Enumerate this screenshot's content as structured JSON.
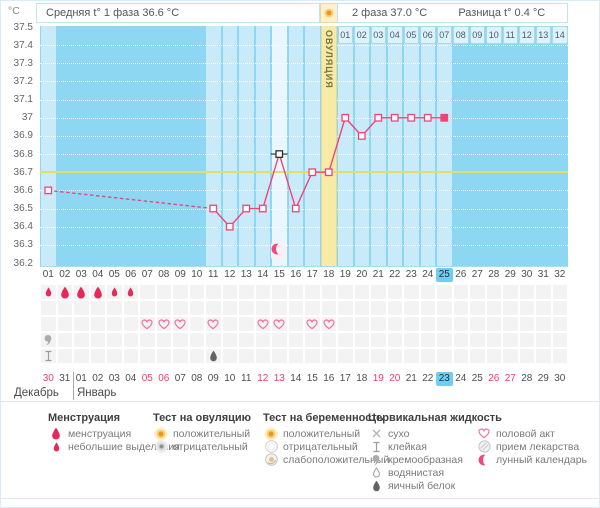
{
  "header": {
    "unit": "°C",
    "phase1_avg": "Средняя t° 1 фаза 36.6 °C",
    "phase2_avg": "2 фаза 37.0 °C",
    "difference": "Разница t° 0.4 °C"
  },
  "chart_data": {
    "type": "line",
    "ylabel": "°C",
    "ylim": [
      36.2,
      37.5
    ],
    "yticks": [
      "37.5",
      "37.4",
      "37.3",
      "37.2",
      "37.1",
      "37",
      "36.9",
      "36.8",
      "36.7",
      "36.6",
      "36.5",
      "36.4",
      "36.3",
      "36.2"
    ],
    "x_days": 32,
    "coverline_temp": 36.7,
    "ovulation": {
      "day": 18,
      "label": "ОВУЛЯЦИЯ"
    },
    "series": [
      {
        "name": "basal-temperature",
        "points": [
          {
            "day": 1,
            "temp": 36.6
          },
          {
            "day": 11,
            "temp": 36.5
          },
          {
            "day": 12,
            "temp": 36.4
          },
          {
            "day": 13,
            "temp": 36.5
          },
          {
            "day": 14,
            "temp": 36.5
          },
          {
            "day": 15,
            "temp": 36.8,
            "excluded": true
          },
          {
            "day": 16,
            "temp": 36.5
          },
          {
            "day": 17,
            "temp": 36.7
          },
          {
            "day": 18,
            "temp": 36.7
          },
          {
            "day": 19,
            "temp": 37.0
          },
          {
            "day": 20,
            "temp": 36.9
          },
          {
            "day": 21,
            "temp": 37.0
          },
          {
            "day": 22,
            "temp": 37.0
          },
          {
            "day": 23,
            "temp": 37.0
          },
          {
            "day": 24,
            "temp": 37.0
          },
          {
            "day": 25,
            "temp": 37.0,
            "current": true
          }
        ],
        "dashed_gap_between_days": [
          1,
          11
        ]
      }
    ],
    "highlighted_columns": [
      1,
      11,
      12,
      13,
      14,
      16,
      17,
      19,
      20,
      21,
      22,
      23,
      24,
      25
    ],
    "excluded_column": 15,
    "lunar_calendar_day": 15,
    "phase2_day_labels": [
      "01",
      "02",
      "03",
      "04",
      "05",
      "06",
      "07",
      "08",
      "09",
      "10",
      "11",
      "12",
      "13",
      "14"
    ],
    "phase2_start_day": 19
  },
  "cycle_days": {
    "labels": [
      "01",
      "02",
      "03",
      "04",
      "05",
      "06",
      "07",
      "08",
      "09",
      "10",
      "11",
      "12",
      "13",
      "14",
      "15",
      "16",
      "17",
      "18",
      "19",
      "20",
      "21",
      "22",
      "23",
      "24",
      "25",
      "26",
      "27",
      "28",
      "29",
      "30",
      "31",
      "32"
    ],
    "current_day": 25
  },
  "tracking": {
    "menstruation": [
      {
        "day": 1,
        "intensity": "light"
      },
      {
        "day": 2,
        "intensity": "heavy"
      },
      {
        "day": 3,
        "intensity": "heavy"
      },
      {
        "day": 4,
        "intensity": "heavy"
      },
      {
        "day": 5,
        "intensity": "light"
      },
      {
        "day": 6,
        "intensity": "light"
      }
    ],
    "intercourse_days": [
      7,
      8,
      9,
      11,
      14,
      15,
      17,
      18
    ],
    "cervical_fluid_row1": [
      {
        "day": 1,
        "type": "creamy"
      }
    ],
    "cervical_fluid_row2": [
      {
        "day": 1,
        "type": "sticky"
      },
      {
        "day": 11,
        "type": "eggwhite"
      }
    ],
    "row_count": 5
  },
  "calendar": {
    "dates": [
      "30",
      "31",
      "01",
      "02",
      "03",
      "04",
      "05",
      "06",
      "07",
      "08",
      "09",
      "10",
      "11",
      "12",
      "13",
      "14",
      "15",
      "16",
      "17",
      "18",
      "19",
      "20",
      "21",
      "22",
      "23",
      "24",
      "25",
      "26",
      "27",
      "28",
      "29",
      "30"
    ],
    "red_date_indices": [
      0,
      6,
      7,
      13,
      14,
      20,
      21,
      27,
      28
    ],
    "current_date_index": 24,
    "month_first": "Декабрь",
    "month_second": "Январь"
  },
  "legend": {
    "columns": [
      {
        "title": "Менструация",
        "items": [
          {
            "icon": "drop-large",
            "label": "менструация"
          },
          {
            "icon": "drop-small",
            "label": "небольшие выделения"
          }
        ]
      },
      {
        "title": "Тест на овуляцию",
        "items": [
          {
            "icon": "test-positive",
            "label": "положительный"
          },
          {
            "icon": "test-negative",
            "label": "отрицательный"
          }
        ]
      },
      {
        "title": "Тест на беременность",
        "items": [
          {
            "icon": "test-positive",
            "label": "положительный"
          },
          {
            "icon": "pregnancy-negative",
            "label": "отрицательный"
          },
          {
            "icon": "pregnancy-weak",
            "label": "слабоположительный"
          }
        ]
      },
      {
        "title": "Цервикальная жидкость",
        "items": [
          {
            "icon": "dry",
            "label": "сухо"
          },
          {
            "icon": "sticky",
            "label": "клейкая"
          },
          {
            "icon": "creamy",
            "label": "кремообразная"
          },
          {
            "icon": "watery",
            "label": "водянистая"
          },
          {
            "icon": "eggwhite",
            "label": "яичный белок"
          }
        ]
      },
      {
        "title": "",
        "items": [
          {
            "icon": "heart",
            "label": "половой акт"
          },
          {
            "icon": "medicine",
            "label": "прием лекарства"
          },
          {
            "icon": "moon",
            "label": "лунный календарь"
          }
        ]
      }
    ]
  },
  "colors": {
    "chart_blue": "#8dd7f2",
    "column_light": "#c9eaf9",
    "column_excluded": "#e9f6fd",
    "ovulation_band": "#f6eaa6",
    "coverline": "#e0e065",
    "line_pink": "#ee4577",
    "excluded_marker": "#2f2f2f",
    "menses_red": "#e7285a",
    "highlight_blue": "#70cdf1",
    "date_red": "#ed3d6d"
  }
}
